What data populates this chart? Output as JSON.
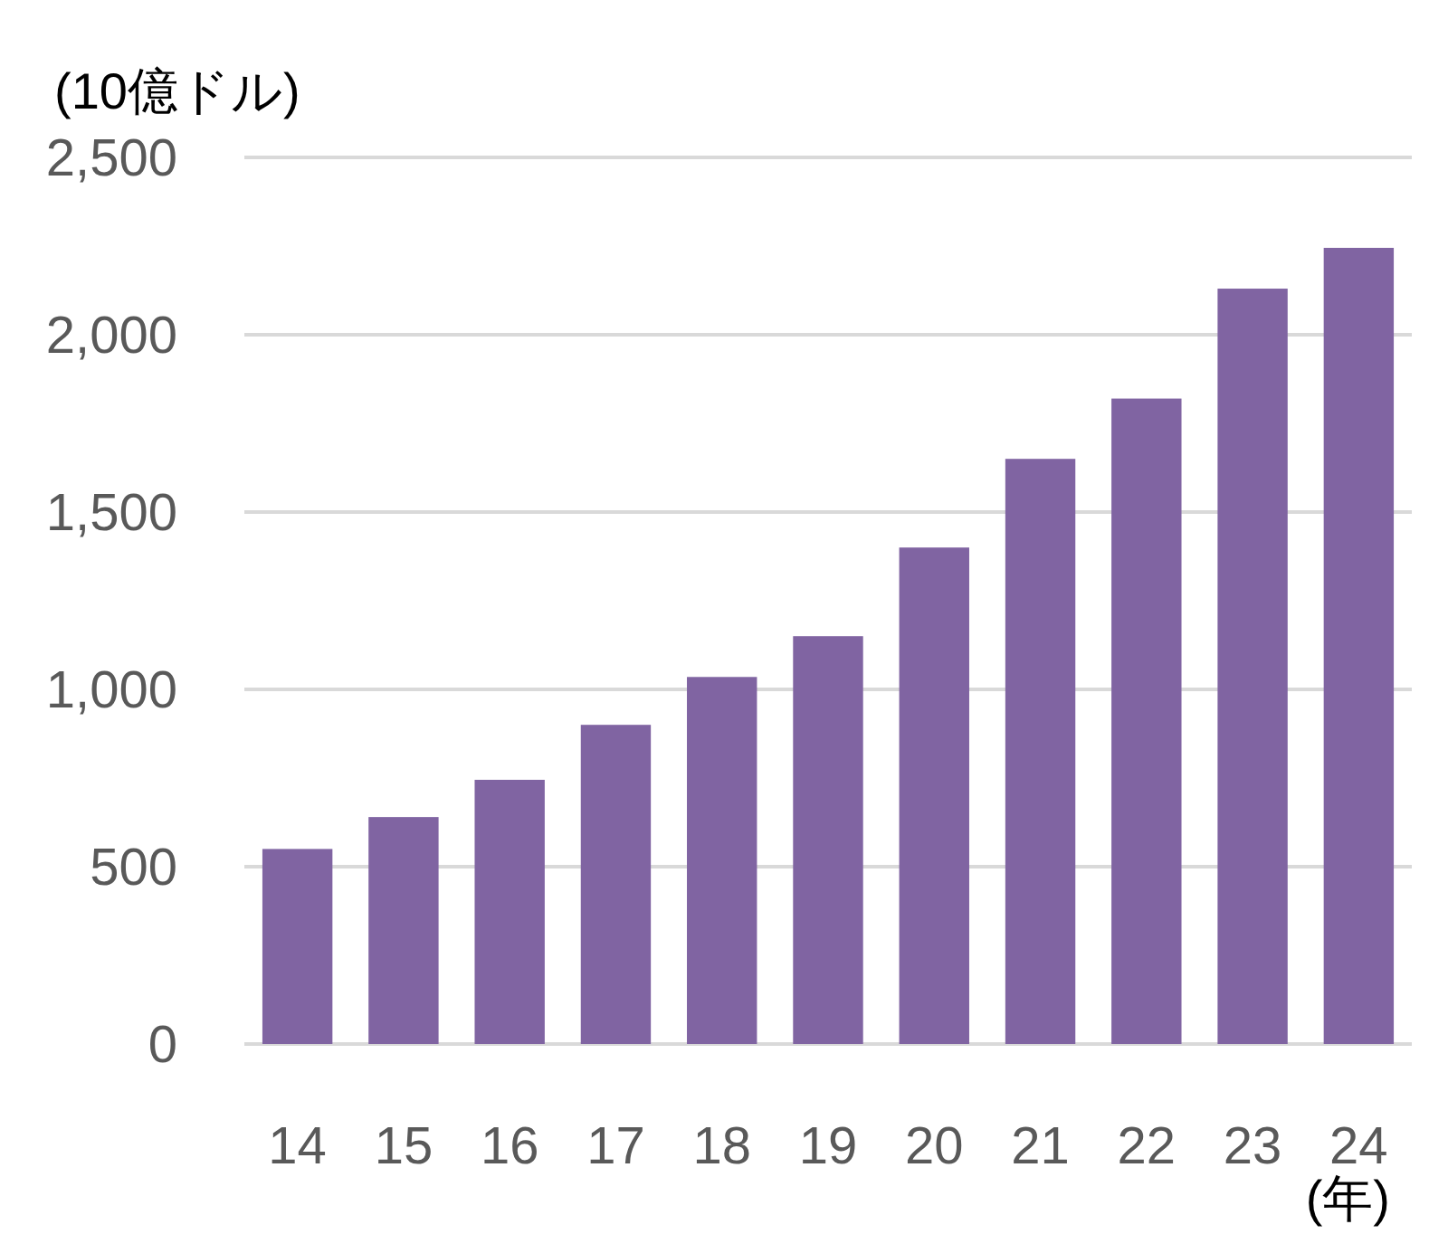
{
  "chart_data": {
    "type": "bar",
    "ylabel": "(10億ドル)",
    "xlabel": "(年)",
    "categories": [
      "14",
      "15",
      "16",
      "17",
      "18",
      "19",
      "20",
      "21",
      "22",
      "23",
      "24"
    ],
    "values": [
      550,
      640,
      745,
      900,
      1035,
      1150,
      1400,
      1650,
      1820,
      2130,
      2245
    ],
    "color": "#8064a2",
    "ylim": [
      0,
      2500
    ],
    "yticks": [
      {
        "value": 0,
        "label": "0"
      },
      {
        "value": 500,
        "label": "500"
      },
      {
        "value": 1000,
        "label": "1,000"
      },
      {
        "value": 1500,
        "label": "1,500"
      },
      {
        "value": 2000,
        "label": "2,000"
      },
      {
        "value": 2500,
        "label": "2,500"
      }
    ],
    "grid": "y"
  }
}
